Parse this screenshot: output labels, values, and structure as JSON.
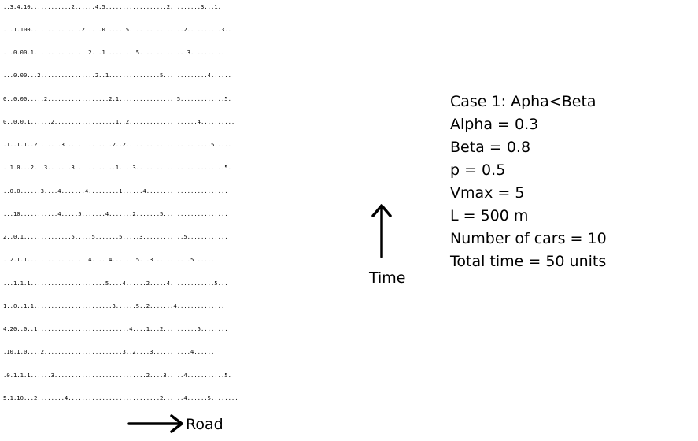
{
  "simulation": {
    "rows": [
      "..3.4.10............2......4.5..................2.........3...1.",
      "...1.100...............2.....0......5................2..........3..",
      "...0.00.1................2...1.........5..............3..........",
      "...0.00...2................2..1...............5.............4......",
      "0..0.00.....2..................2.1.................5.............5.",
      "0..0.0.1......2..................1..2....................4..........",
      ".1..1.1..2.......3..............2..2.........................5......",
      "..1.0...2...3.......3............1....3..........................5.",
      "..0.0......3....4.......4.........1......4........................",
      "...10...........4.....5.......4.......2.......5...................",
      "2..0.1..............5.....5.......5.....3............5............",
      "..2.1.1..................4.....4.......5...3...........5.......",
      "...1.1.1......................5....4......2.....4.............5...",
      "1..0..1.1.......................3......5..2.......4..............",
      "4.20..0..1...........................4....1...2..........5........",
      ".10.1.0....2.......................3..2....3...........4......",
      ".0.1.1.1......3...........................2....3.....4...........5.",
      "5.1.10...2........4...........................2......4......5........"
    ]
  },
  "labels": {
    "time": "Time",
    "road": "Road"
  },
  "params": {
    "lines": [
      "Case 1: Apha<Beta",
      "Alpha = 0.3",
      "Beta = 0.8",
      "p = 0.5",
      "Vmax = 5",
      "L = 500 m",
      "Number of cars = 10",
      "Total time = 50 units"
    ]
  },
  "icons": {
    "time_arrow": "arrow-up-icon",
    "road_arrow": "arrow-right-icon"
  },
  "colors": {
    "text": "#000000",
    "background": "#ffffff"
  }
}
